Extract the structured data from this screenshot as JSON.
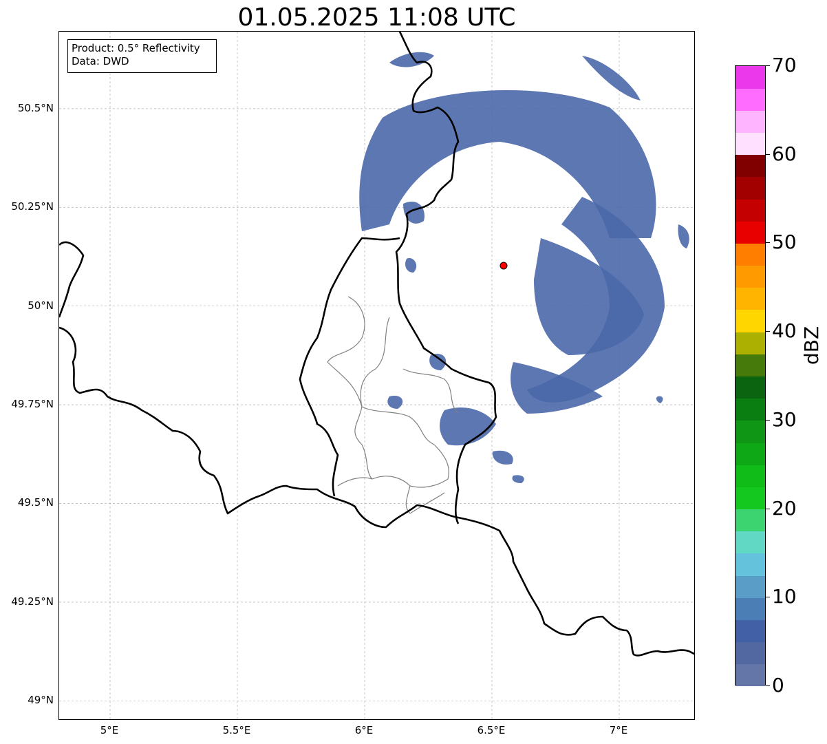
{
  "title": "01.05.2025 11:08 UTC",
  "infobox": {
    "product": "Product: 0.5° Reflectivity",
    "data": "Data: DWD"
  },
  "map": {
    "lon_range": [
      4.8,
      7.3
    ],
    "lat_range": [
      48.95,
      50.695
    ],
    "lat_ticks": [
      {
        "value": 50.5,
        "label": "50.5°N"
      },
      {
        "value": 50.25,
        "label": "50.25°N"
      },
      {
        "value": 50.0,
        "label": "50°N"
      },
      {
        "value": 49.75,
        "label": "49.75°N"
      },
      {
        "value": 49.5,
        "label": "49.5°N"
      },
      {
        "value": 49.25,
        "label": "49.25°N"
      },
      {
        "value": 49.0,
        "label": "49°N"
      }
    ],
    "lon_ticks": [
      {
        "value": 5.0,
        "label": "5°E"
      },
      {
        "value": 5.5,
        "label": "5.5°E"
      },
      {
        "value": 6.0,
        "label": "6°E"
      },
      {
        "value": 6.5,
        "label": "6.5°E"
      },
      {
        "value": 7.0,
        "label": "7°E"
      }
    ],
    "grid": true,
    "radar_site": {
      "lon": 6.548,
      "lat": 50.11,
      "color": "#ff0000"
    },
    "echo_color": "#4a68a8",
    "border_color": "#000000",
    "subregion_color": "#808080"
  },
  "colorbar": {
    "label": "dBZ",
    "min": 0,
    "max": 70,
    "step": 2.5,
    "tick_labels": [
      "0",
      "10",
      "20",
      "30",
      "40",
      "50",
      "60",
      "70"
    ],
    "colors": [
      "#6476a8",
      "#5268a0",
      "#4260a6",
      "#4a7eb4",
      "#5a9ec8",
      "#64c2dc",
      "#60d8c4",
      "#3cd470",
      "#14c820",
      "#10bc18",
      "#0ea816",
      "#0e9614",
      "#0a7e10",
      "#0a6410",
      "#467a0a",
      "#acb000",
      "#ffd600",
      "#ffb400",
      "#ff9a00",
      "#ff7e00",
      "#e80000",
      "#c40000",
      "#a20000",
      "#800000",
      "#ffe0ff",
      "#ffb4ff",
      "#ff6cff",
      "#ea38ea"
    ]
  }
}
